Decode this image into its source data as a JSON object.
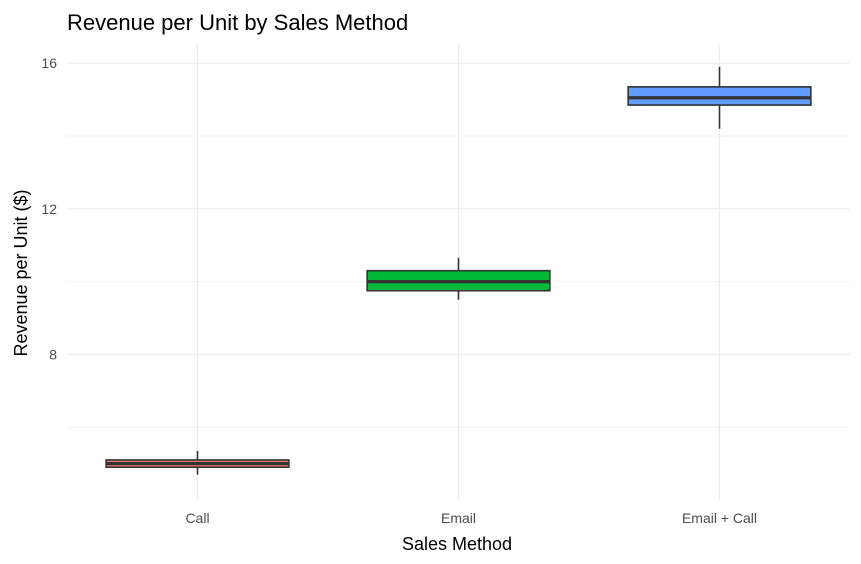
{
  "chart_data": {
    "type": "boxplot",
    "title": "Revenue per Unit by Sales Method",
    "xlabel": "Sales Method",
    "ylabel": "Revenue per Unit ($)",
    "ylim": [
      4.0,
      16.5
    ],
    "yticks": [
      8,
      12,
      16
    ],
    "y_minor_ticks": [
      6,
      10,
      14
    ],
    "grid": true,
    "legend": "none",
    "categories": [
      "Call",
      "Email",
      "Email + Call"
    ],
    "series": [
      {
        "category": "Call",
        "min": 4.7,
        "q1": 4.9,
        "median": 5.0,
        "q3": 5.1,
        "max": 5.35,
        "color": "#F8766D"
      },
      {
        "category": "Email",
        "min": 9.5,
        "q1": 9.75,
        "median": 10.0,
        "q3": 10.3,
        "max": 10.65,
        "color": "#00BA38"
      },
      {
        "category": "Email + Call",
        "min": 14.2,
        "q1": 14.85,
        "median": 15.05,
        "q3": 15.35,
        "max": 15.9,
        "color": "#619CFF"
      }
    ]
  }
}
